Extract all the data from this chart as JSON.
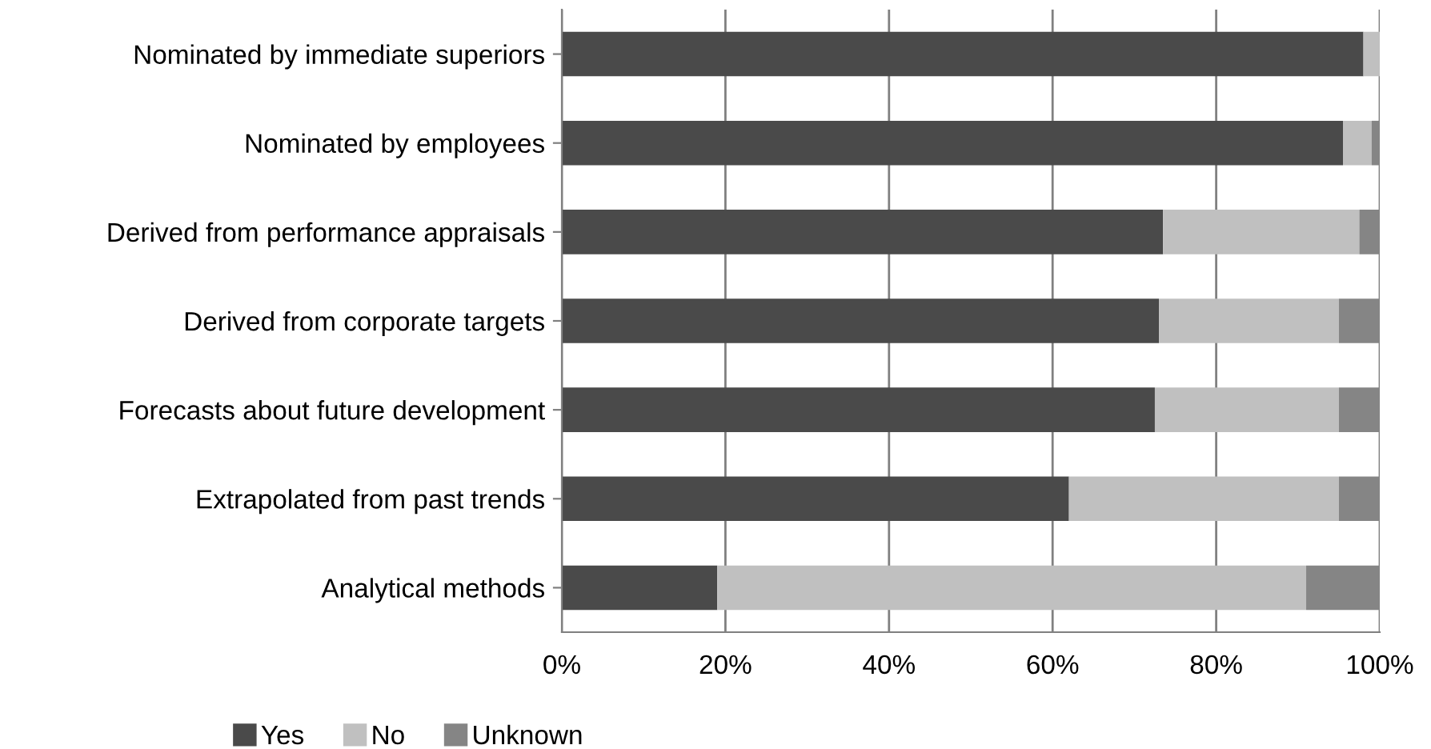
{
  "chart_data": {
    "type": "bar",
    "orientation": "horizontal",
    "stacked": true,
    "categories": [
      "Nominated by immediate superiors",
      "Nominated by employees",
      "Derived from performance appraisals",
      "Derived from corporate targets",
      "Forecasts about future development",
      "Extrapolated from past trends",
      "Analytical methods"
    ],
    "series": [
      {
        "name": "Yes",
        "color": "#4a4a4a",
        "values": [
          98,
          95.5,
          73.5,
          73,
          72.5,
          62,
          19
        ]
      },
      {
        "name": "No",
        "color": "#c0c0c0",
        "values": [
          2,
          3.5,
          24,
          22,
          22.5,
          33,
          72
        ]
      },
      {
        "name": "Unknown",
        "color": "#858585",
        "values": [
          0,
          1,
          2.5,
          5,
          5,
          5,
          9
        ]
      }
    ],
    "xlim": [
      0,
      100
    ],
    "xticks": [
      {
        "value": 0,
        "label": "0%"
      },
      {
        "value": 20,
        "label": "20%"
      },
      {
        "value": 40,
        "label": "40%"
      },
      {
        "value": 60,
        "label": "60%"
      },
      {
        "value": 80,
        "label": "80%"
      },
      {
        "value": 100,
        "label": "100%"
      }
    ],
    "grid": "x",
    "legend": "bottom left"
  }
}
